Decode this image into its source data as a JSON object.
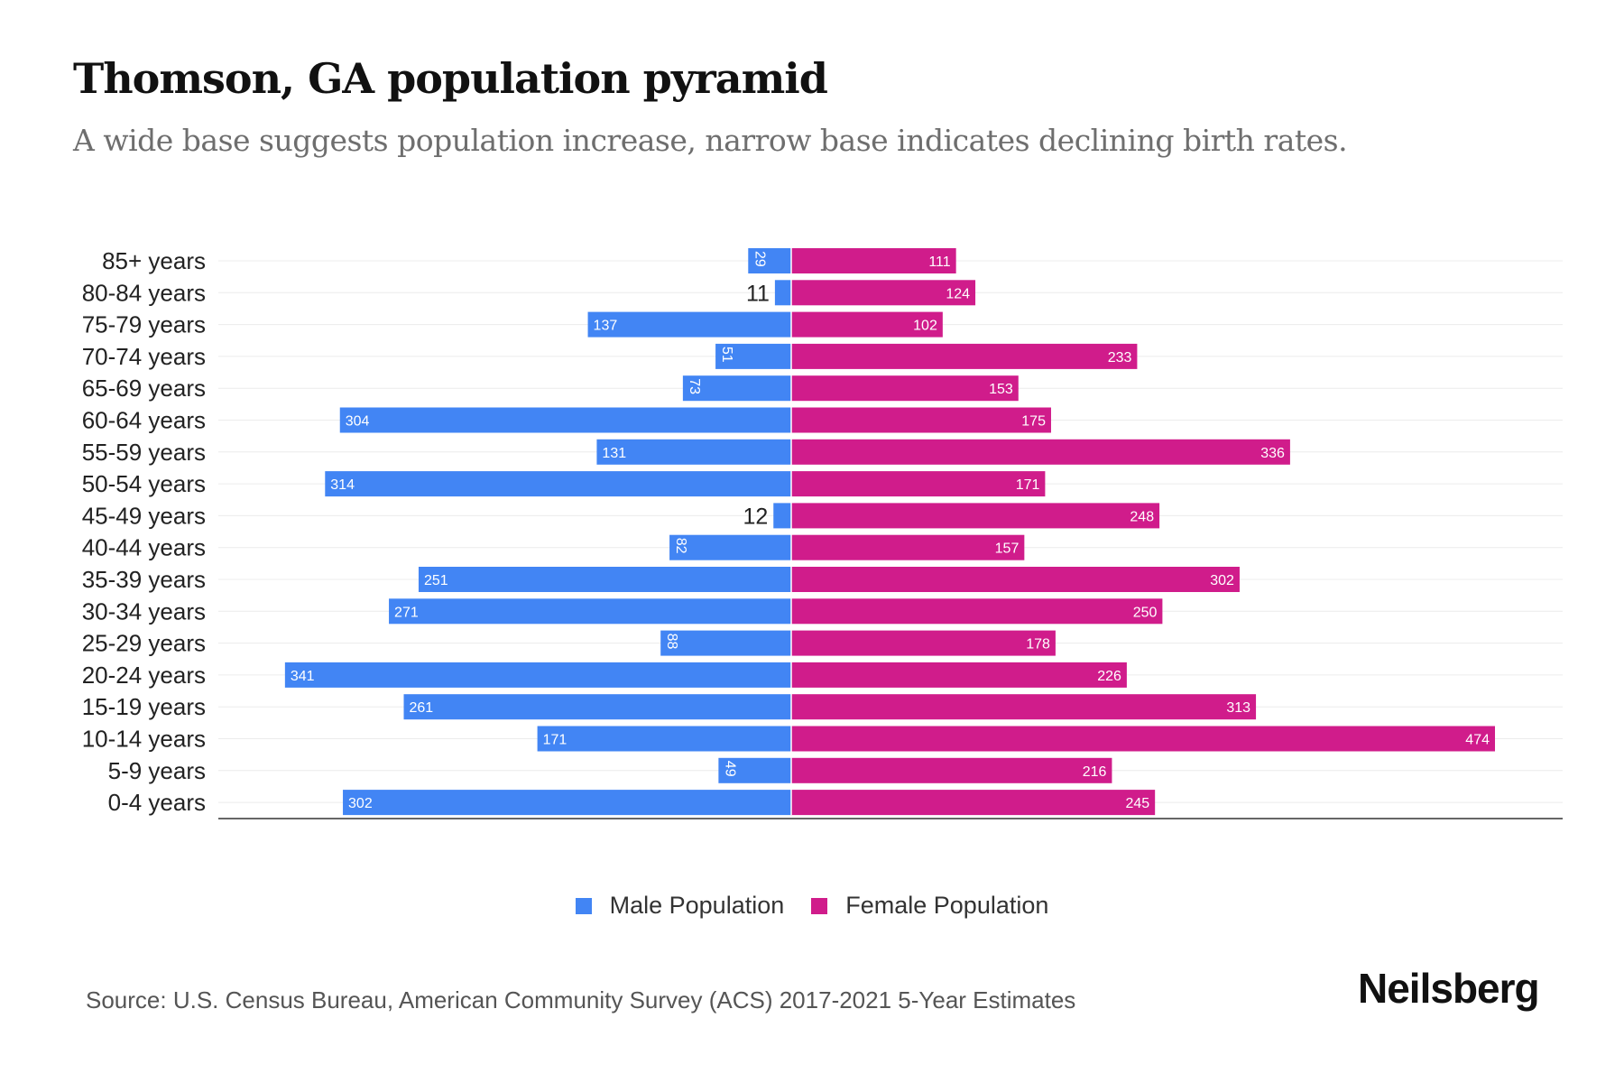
{
  "title": "Thomson, GA population pyramid",
  "subtitle": "A wide base suggests population increase, narrow base indicates declining birth rates.",
  "source": "Source: U.S. Census Bureau, American Community Survey (ACS) 2017-2021 5-Year Estimates",
  "logo": "Neilsberg",
  "colors": {
    "male": "#4285f4",
    "female": "#d01c8b"
  },
  "chart_data": {
    "type": "bar",
    "orientation": "horizontal-pyramid",
    "categories": [
      "85+ years",
      "80-84 years",
      "75-79 years",
      "70-74 years",
      "65-69 years",
      "60-64 years",
      "55-59 years",
      "50-54 years",
      "45-49 years",
      "40-44 years",
      "35-39 years",
      "30-34 years",
      "25-29 years",
      "20-24 years",
      "15-19 years",
      "10-14 years",
      "5-9 years",
      "0-4 years"
    ],
    "series": [
      {
        "name": "Male Population",
        "values": [
          29,
          11,
          137,
          51,
          73,
          304,
          131,
          314,
          12,
          82,
          251,
          271,
          88,
          341,
          261,
          171,
          49,
          302
        ]
      },
      {
        "name": "Female Population",
        "values": [
          111,
          124,
          102,
          233,
          153,
          175,
          336,
          171,
          248,
          157,
          302,
          250,
          178,
          226,
          313,
          474,
          216,
          245
        ]
      }
    ],
    "legend_position": "bottom-center",
    "grid": true
  }
}
